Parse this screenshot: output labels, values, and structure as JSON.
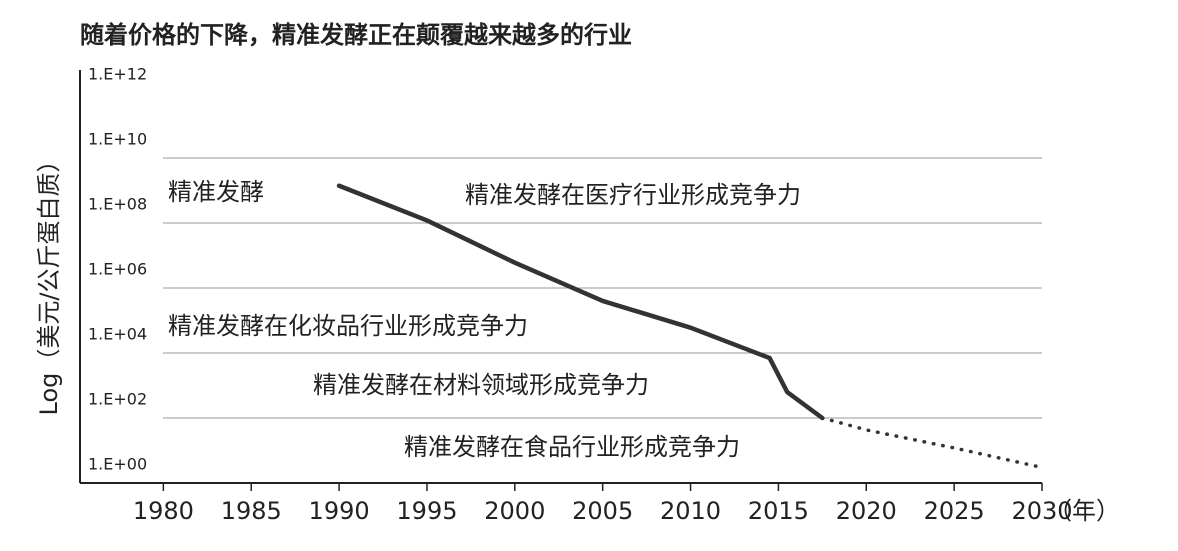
{
  "chart_data": {
    "type": "line",
    "title": "随着价格的下降，精准发酵正在颠覆越来越多的行业",
    "y_label": "Log（美元/公斤蛋白质）",
    "x_label": "（年）",
    "log_y": true,
    "grid": true,
    "xlim": [
      1975,
      2030
    ],
    "xticks": [
      1980,
      1985,
      1990,
      1995,
      2000,
      2005,
      2010,
      2015,
      2020,
      2025,
      2030
    ],
    "ylim": [
      1,
      1000000000000
    ],
    "yticks": [
      {
        "value": 1,
        "label": "1.E+00"
      },
      {
        "value": 100,
        "label": "1.E+02"
      },
      {
        "value": 10000,
        "label": "1.E+04"
      },
      {
        "value": 1000000,
        "label": "1.E+06"
      },
      {
        "value": 100000000,
        "label": "1.E+08"
      },
      {
        "value": 10000000000,
        "label": "1.E+10"
      },
      {
        "value": 1000000000000,
        "label": "1.E+12"
      }
    ],
    "series": [
      {
        "color": "#333333",
        "dash": "solid",
        "x": [
          1990,
          1995,
          2000,
          2005,
          2010,
          2014.5,
          2015.5,
          2017.5
        ],
        "values": [
          1400000000,
          120000000,
          6000000,
          400000,
          60000,
          7000,
          630,
          100
        ]
      },
      {
        "color": "#333333",
        "dash": "dotted",
        "x": [
          2017.5,
          2020,
          2025,
          2030
        ],
        "values": [
          100,
          43,
          12,
          3
        ]
      }
    ],
    "annotations": [
      "精准发酵",
      "精准发酵在医疗行业形成竞争力",
      "精准发酵在化妆品行业形成竞争力",
      "精准发酵在材料领域形成竞争力",
      "精准发酵在食品行业形成竞争力"
    ]
  }
}
